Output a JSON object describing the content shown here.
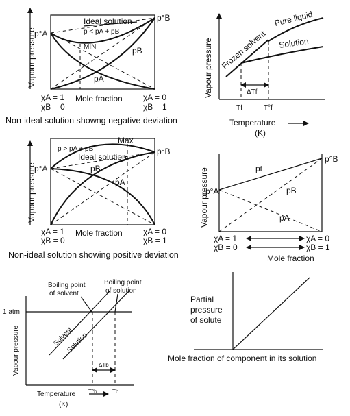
{
  "neg": {
    "yaxis": "Vapour pressure",
    "pa0": "p°A",
    "pb0": "p°B",
    "ideal": "Ideal solution",
    "ineq": "p < pA + pB",
    "min": "MIN",
    "pb": "pB",
    "pa": "pA",
    "xa1": "χA = 1",
    "xb0": "χB = 0",
    "molefrac": "Mole fraction",
    "xa0": "χA = 0",
    "xb1": "χB = 1",
    "caption": "Non-ideal solution showng negative deviation"
  },
  "freeze": {
    "yaxis": "Vapour pressure",
    "frozen": "Frozen solvent",
    "pure": "Pure liquid",
    "solution": "Solution",
    "dtf": "ΔTf",
    "tf": "Tf",
    "tf0": "T°f",
    "temp": "Temperature",
    "unit": "(K)"
  },
  "pos": {
    "yaxis": "Vapour pressure",
    "pa0": "p°A",
    "pb0": "p°B",
    "ineq": "p > pA + pB",
    "max": "Max",
    "ideal": "Ideal solution",
    "pb": "pB",
    "pa": "pA",
    "xa1": "χA = 1",
    "xb0": "χB = 0",
    "molefrac": "Mole fraction",
    "xa0": "χA = 0",
    "xb1": "χB = 1",
    "caption": "Non-ideal solution showing positive deviation"
  },
  "ideal": {
    "yaxis": "Vapour pressure",
    "pa0": "p°A",
    "pb0": "p°B",
    "pt": "pt",
    "pb": "pB",
    "pa": "pA",
    "xa1": "χA = 1",
    "xb0": "χB = 0",
    "xa0": "χA = 0",
    "xb1": "χB = 1",
    "molefrac": "Mole fraction"
  },
  "boil": {
    "yaxis": "Vapour pressure",
    "atm": "1 atm",
    "bp_solvent": "Boiling point of solvent",
    "bp_solution": "Boiling point of solution",
    "solvent": "Solvent",
    "solution": "Solution",
    "dtb": "ΔTb",
    "tb0": "T°b",
    "tb": "Tb",
    "temp": "Temperature",
    "unit": "(K)"
  },
  "henry": {
    "ylabel": "Partial pressure of solute",
    "xlabel": "Mole fraction of component in its solution"
  }
}
